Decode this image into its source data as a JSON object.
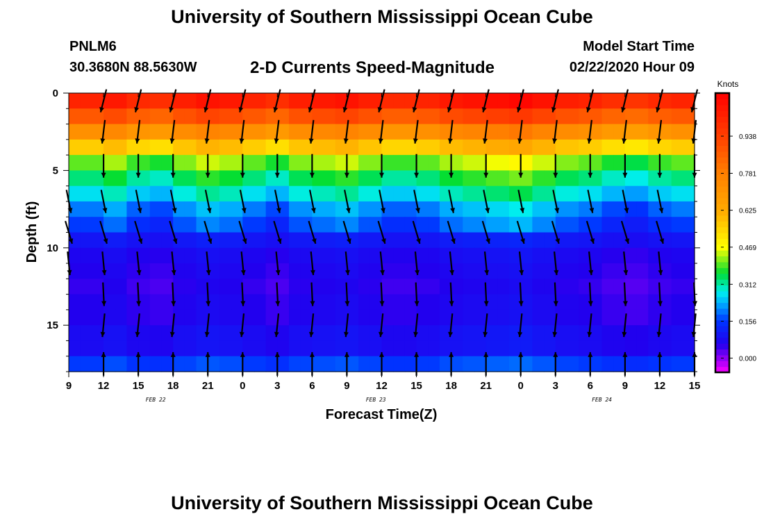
{
  "page": {
    "title_top": "University of Southern Mississippi Ocean Cube",
    "title_bottom": "University of Southern Mississippi Ocean Cube",
    "station_id": "PNLM6",
    "station_coords": "30.3680N 88.5630W",
    "product_title": "2-D Currents Speed-Magnitude",
    "model_start_label": "Model Start Time",
    "model_start_value": "02/22/2020 Hour 09"
  },
  "colors": {
    "background": "#ffffff",
    "arrow": "#000000",
    "colorbar_frame": "#000000"
  },
  "chart_data": {
    "type": "heatmap",
    "title": "2-D Currents Speed-Magnitude",
    "xlabel": "Forecast Time(Z)",
    "ylabel": "Depth (ft)",
    "x_hours_range": [
      0,
      54
    ],
    "ylim": [
      0,
      18
    ],
    "x_ticks": [
      {
        "hour": 0,
        "label": "9"
      },
      {
        "hour": 3,
        "label": "12"
      },
      {
        "hour": 6,
        "label": "15"
      },
      {
        "hour": 9,
        "label": "18"
      },
      {
        "hour": 12,
        "label": "21"
      },
      {
        "hour": 15,
        "label": "0"
      },
      {
        "hour": 18,
        "label": "3"
      },
      {
        "hour": 21,
        "label": "6"
      },
      {
        "hour": 24,
        "label": "9"
      },
      {
        "hour": 27,
        "label": "12"
      },
      {
        "hour": 30,
        "label": "15"
      },
      {
        "hour": 33,
        "label": "18"
      },
      {
        "hour": 36,
        "label": "21"
      },
      {
        "hour": 39,
        "label": "0"
      },
      {
        "hour": 42,
        "label": "3"
      },
      {
        "hour": 45,
        "label": "6"
      },
      {
        "hour": 48,
        "label": "9"
      },
      {
        "hour": 51,
        "label": "12"
      },
      {
        "hour": 54,
        "label": "15"
      }
    ],
    "date_labels": [
      {
        "hour": 7.5,
        "label": "FEB 22"
      },
      {
        "hour": 26.5,
        "label": "FEB 23"
      },
      {
        "hour": 46,
        "label": "FEB 24"
      }
    ],
    "y_ticks": [
      0,
      5,
      10,
      15
    ],
    "colorbar": {
      "title": "Knots",
      "min": -0.06,
      "max": 1.12,
      "tick_values": [
        0.938,
        0.781,
        0.625,
        0.469,
        0.312,
        0.156,
        0.0
      ],
      "tick_labels": [
        "0.938",
        "0.781",
        "0.625",
        "0.469",
        "0.312",
        "0.156",
        "0.000"
      ],
      "stops": [
        {
          "v": -0.06,
          "c": "#ff00ff"
        },
        {
          "v": 0.06,
          "c": "#2200ee"
        },
        {
          "v": 0.156,
          "c": "#0033ff"
        },
        {
          "v": 0.23,
          "c": "#00aaff"
        },
        {
          "v": 0.28,
          "c": "#00eeee"
        },
        {
          "v": 0.36,
          "c": "#00dd33"
        },
        {
          "v": 0.469,
          "c": "#ffff00"
        },
        {
          "v": 0.625,
          "c": "#ffaa00"
        },
        {
          "v": 0.781,
          "c": "#ff8000"
        },
        {
          "v": 0.938,
          "c": "#ff4000"
        },
        {
          "v": 1.12,
          "c": "#ff0000"
        }
      ]
    },
    "speed_profile_by_depth": [
      1.02,
      0.88,
      0.72,
      0.56,
      0.4,
      0.33,
      0.27,
      0.2,
      0.16,
      0.1,
      0.07,
      0.06,
      0.05,
      0.06,
      0.06,
      0.08,
      0.08,
      0.16
    ],
    "time_anomaly": [
      0.0,
      0.02,
      -0.01,
      -0.02,
      0.01,
      0.03,
      0.02,
      0.0,
      -0.02,
      0.01,
      0.02,
      0.03,
      0.01,
      -0.01,
      0.0,
      0.02,
      0.03,
      0.04,
      0.05,
      0.03,
      0.01,
      0.0,
      -0.02,
      -0.03,
      -0.01,
      0.0
    ],
    "vectors": [
      {
        "depth": 0.5,
        "hours": [
          3,
          6,
          9,
          12,
          15,
          18,
          21,
          24,
          27,
          30,
          33,
          36,
          39,
          42,
          45,
          48,
          51,
          54
        ],
        "dx": -0.25,
        "dy": 1
      },
      {
        "depth": 2.5,
        "hours": [
          3,
          6,
          9,
          12,
          15,
          18,
          21,
          24,
          27,
          30,
          33,
          36,
          39,
          42,
          45,
          48,
          51,
          54
        ],
        "dx": -0.12,
        "dy": 1
      },
      {
        "depth": 4.7,
        "hours": [
          3,
          6,
          9,
          12,
          15,
          18,
          21,
          24,
          27,
          30,
          33,
          36,
          39,
          42,
          45,
          48,
          51,
          54
        ],
        "dx": 0.0,
        "dy": 1
      },
      {
        "depth": 7.0,
        "hours": [
          0,
          3,
          6,
          9,
          12,
          15,
          18,
          21,
          24,
          27,
          30,
          33,
          36,
          39,
          42,
          45,
          48,
          51
        ],
        "dx": 0.2,
        "dy": 1
      },
      {
        "depth": 9.0,
        "hours": [
          0,
          3,
          6,
          9,
          12,
          15,
          18,
          21,
          24,
          27,
          30,
          33,
          36,
          39,
          42,
          45,
          48,
          51
        ],
        "dx": 0.3,
        "dy": 1
      },
      {
        "depth": 11.0,
        "hours": [
          0,
          3,
          6,
          9,
          12,
          15,
          18,
          21,
          24,
          27,
          30,
          33,
          36,
          39,
          42,
          45,
          48,
          51
        ],
        "dx": 0.1,
        "dy": 1
      },
      {
        "depth": 13.0,
        "hours": [
          3,
          6,
          9,
          12,
          15,
          18,
          21,
          24,
          27,
          30,
          33,
          36,
          39,
          42,
          45,
          48,
          51,
          54
        ],
        "dx": 0.05,
        "dy": 1
      },
      {
        "depth": 15.0,
        "hours": [
          3,
          6,
          9,
          12,
          15,
          18,
          21,
          24,
          27,
          30,
          33,
          36,
          39,
          42,
          45,
          48,
          51,
          54
        ],
        "dx": -0.1,
        "dy": 1
      },
      {
        "depth": 17.5,
        "hours": [
          3,
          6,
          9,
          12,
          15,
          18,
          21,
          24,
          27,
          30,
          33,
          36,
          39,
          42,
          45,
          48,
          51,
          54
        ],
        "dx": 0.0,
        "dy": -1
      }
    ]
  }
}
